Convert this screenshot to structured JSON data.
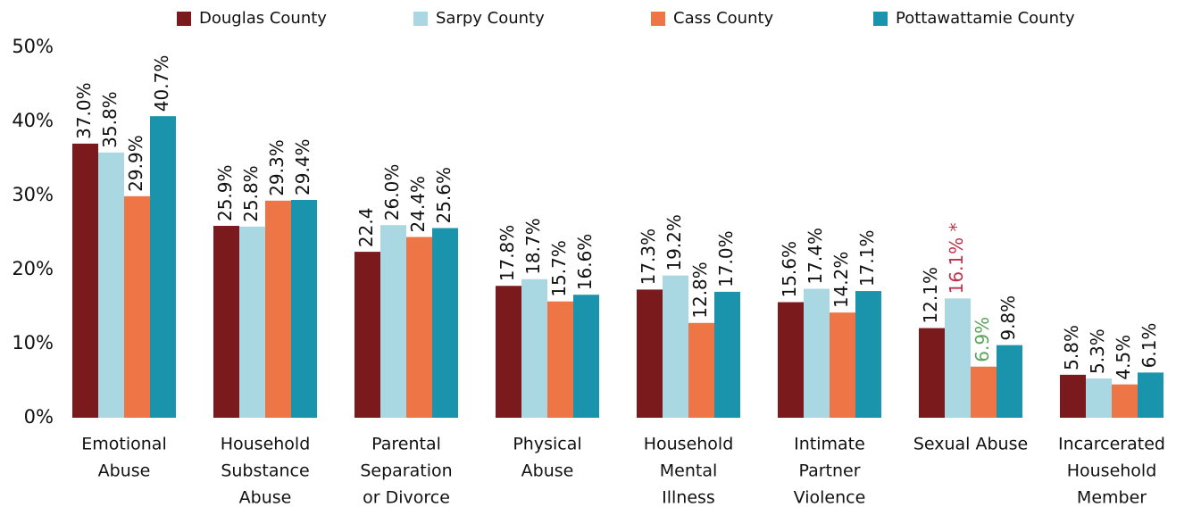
{
  "chart_data": {
    "type": "bar",
    "categories": [
      [
        "Emotional",
        "Abuse"
      ],
      [
        "Household",
        "Substance",
        "Abuse"
      ],
      [
        "Parental",
        "Separation",
        "or Divorce"
      ],
      [
        "Physical",
        "Abuse"
      ],
      [
        "Household",
        "Mental",
        "Illness"
      ],
      [
        "Intimate",
        "Partner",
        "Violence"
      ],
      [
        "Sexual Abuse"
      ],
      [
        "Incarcerated",
        "Household",
        "Member"
      ]
    ],
    "series": [
      {
        "name": "Douglas County",
        "color": "#7a1a1d",
        "values": [
          37.0,
          25.9,
          22.4,
          17.8,
          17.3,
          15.6,
          12.1,
          5.8
        ],
        "value_labels": [
          "37.0%",
          "25.9%",
          "22.4",
          "17.8%",
          "17.3%",
          "15.6%",
          "12.1%",
          "5.8%"
        ],
        "label_colors": [
          "#111111",
          "#111111",
          "#111111",
          "#111111",
          "#111111",
          "#111111",
          "#111111",
          "#111111"
        ]
      },
      {
        "name": "Sarpy County",
        "color": "#a9d7e2",
        "values": [
          35.8,
          25.8,
          26.0,
          18.7,
          19.2,
          17.4,
          16.1,
          5.3
        ],
        "value_labels": [
          "35.8%",
          "25.8%",
          "26.0%",
          "18.7%",
          "19.2%",
          "17.4%",
          "16.1% *",
          "5.3%"
        ],
        "label_colors": [
          "#111111",
          "#111111",
          "#111111",
          "#111111",
          "#111111",
          "#111111",
          "#c0304a",
          "#111111"
        ]
      },
      {
        "name": "Cass County",
        "color": "#ee7546",
        "values": [
          29.9,
          29.3,
          24.4,
          15.7,
          12.8,
          14.2,
          6.9,
          4.5
        ],
        "value_labels": [
          "29.9%",
          "29.3%",
          "24.4%",
          "15.7%",
          "12.8%",
          "14.2%",
          "6.9%",
          "4.5%"
        ],
        "label_colors": [
          "#111111",
          "#111111",
          "#111111",
          "#111111",
          "#111111",
          "#111111",
          "#5aa55a",
          "#111111"
        ]
      },
      {
        "name": "Pottawattamie County",
        "color": "#1a93ad",
        "values": [
          40.7,
          29.4,
          25.6,
          16.6,
          17.0,
          17.1,
          9.8,
          6.1
        ],
        "value_labels": [
          "40.7%",
          "29.4%",
          "25.6%",
          "16.6%",
          "17.0%",
          "17.1%",
          "9.8%",
          "6.1%"
        ],
        "label_colors": [
          "#111111",
          "#111111",
          "#111111",
          "#111111",
          "#111111",
          "#111111",
          "#111111",
          "#111111"
        ]
      }
    ],
    "ylim": [
      0,
      50
    ],
    "yticks": [
      {
        "value": 0,
        "label": "0%"
      },
      {
        "value": 10,
        "label": "10%"
      },
      {
        "value": 20,
        "label": "20%"
      },
      {
        "value": 30,
        "label": "30%"
      },
      {
        "value": 40,
        "label": "40%"
      },
      {
        "value": 50,
        "label": "50%"
      }
    ],
    "legend": "top"
  }
}
